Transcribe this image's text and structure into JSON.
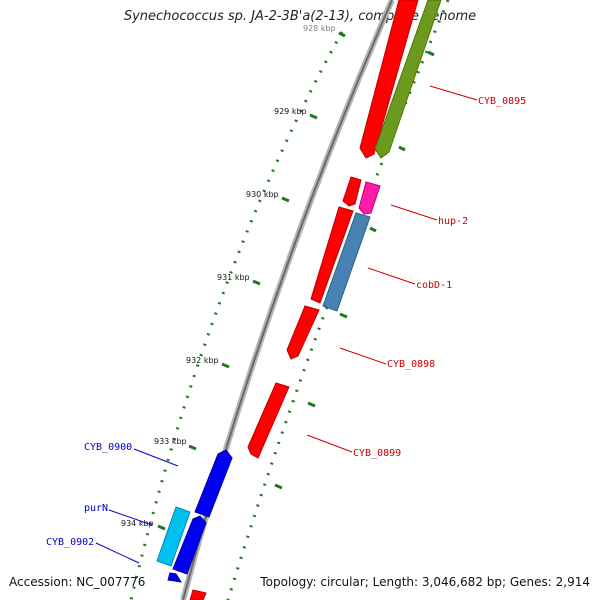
{
  "title": "Synechococcus sp. JA-2-3B'a(2-13), complete genome",
  "footer": {
    "accession": "Accession: NC_007776",
    "summary": "Topology: circular; Length: 3,046,682 bp; Genes: 2,914"
  },
  "colors": {
    "backbone": "#8a8a8a",
    "ticks": "#1e7a1e",
    "red_gene": "#ff0000",
    "red_label": "#cc0000",
    "blue_gene": "#0000ee",
    "blue_label": "#0000cc",
    "cyan_gene": "#00c0f0",
    "olive_gene": "#6b9a1e",
    "magenta_gene": "#ff1aa8",
    "steel_gene": "#4682b4"
  },
  "ticks": [
    {
      "label": "928 kbp"
    },
    {
      "label": "929 kbp"
    },
    {
      "label": "930 kbp"
    },
    {
      "label": "931 kbp"
    },
    {
      "label": "932 kbp"
    },
    {
      "label": "933 kbp"
    },
    {
      "label": "934 kbp"
    }
  ],
  "genes": [
    {
      "name": "CYB_0895",
      "color": "olive"
    },
    {
      "name": "hup-2",
      "color": "magenta"
    },
    {
      "name": "cobD-1",
      "color": "steel"
    },
    {
      "name": "CYB_0898",
      "color": "red"
    },
    {
      "name": "CYB_0899",
      "color": "red"
    },
    {
      "name": "CYB_0900",
      "color": "blue"
    },
    {
      "name": "purN",
      "color": "cyan"
    },
    {
      "name": "CYB_0902",
      "color": "blue"
    }
  ]
}
